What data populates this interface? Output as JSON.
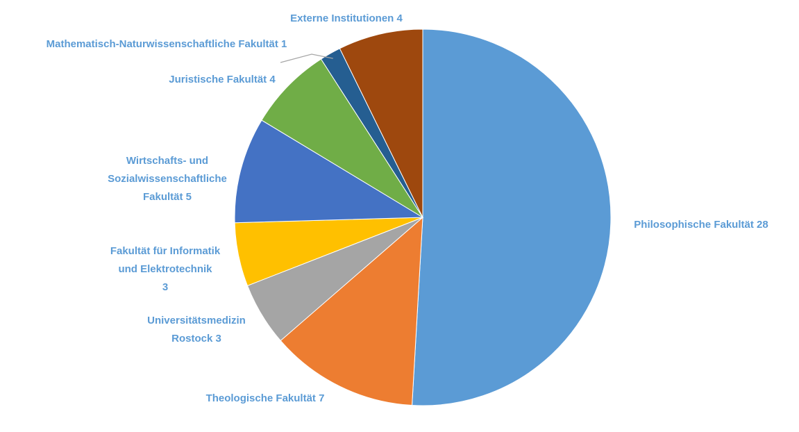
{
  "chart_data": {
    "type": "pie",
    "title": "",
    "start_angle_deg": 0,
    "direction": "clockwise",
    "label_color": "#5B9BD5",
    "leader_color": "#A6A6A6",
    "slices": [
      {
        "label": "Philosophische Fakultät",
        "value": 28,
        "color": "#5B9BD5",
        "label_lines": [
          "Philosophische Fakultät 28"
        ]
      },
      {
        "label": "Theologische Fakultät",
        "value": 7,
        "color": "#ED7D31",
        "label_lines": [
          "Theologische Fakultät 7"
        ]
      },
      {
        "label": "Universitätsmedizin Rostock",
        "value": 3,
        "color": "#A5A5A5",
        "label_lines": [
          "Universitätsmedizin",
          "Rostock 3"
        ]
      },
      {
        "label": "Fakultät für Informatik und Elektrotechnik",
        "value": 3,
        "color": "#FFC000",
        "label_lines": [
          "Fakultät für Informatik",
          "und Elektrotechnik",
          "3"
        ]
      },
      {
        "label": "Wirtschafts- und Sozialwissenschaftliche Fakultät",
        "value": 5,
        "color": "#4472C4",
        "label_lines": [
          "Wirtschafts- und",
          "Sozialwissenschaftliche",
          "Fakultät 5"
        ]
      },
      {
        "label": "Juristische Fakultät",
        "value": 4,
        "color": "#70AD47",
        "label_lines": [
          "Juristische Fakultät 4"
        ]
      },
      {
        "label": "Mathematisch-Naturwissenschaftliche Fakultät",
        "value": 1,
        "color": "#255E91",
        "label_lines": [
          "Mathematisch-Naturwissenschaftliche Fakultät 1"
        ],
        "leader_line": true
      },
      {
        "label": "Externe Institutionen",
        "value": 4,
        "color": "#9E480E",
        "label_lines": [
          "Externe Institutionen 4"
        ]
      }
    ]
  }
}
